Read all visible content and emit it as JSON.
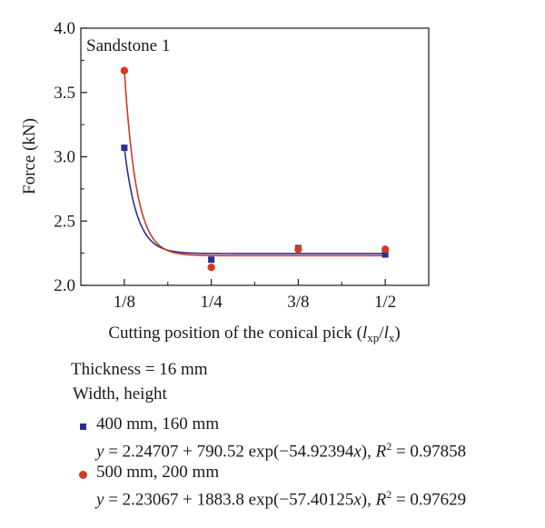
{
  "chart_data": {
    "type": "scatter",
    "title": "Sandstone 1",
    "xlabel_main": "Cutting position of the conical pick (",
    "xlabel_l1": "l",
    "xlabel_sub1": "xp",
    "xlabel_slash": "/",
    "xlabel_l2": "l",
    "xlabel_sub2": "x",
    "xlabel_close": ")",
    "ylabel": "Force (kN)",
    "categories": [
      "1/8",
      "1/4",
      "3/8",
      "1/2"
    ],
    "x": [
      0.125,
      0.25,
      0.375,
      0.5
    ],
    "xlim": [
      0.0625,
      0.5625
    ],
    "ylim": [
      2.0,
      4.0
    ],
    "yticks": [
      "2.0",
      "2.5",
      "3.0",
      "3.5",
      "4.0"
    ],
    "series": [
      {
        "name": "400 mm, 160 mm",
        "color": "#2b2f8f",
        "marker": "square",
        "values": [
          3.07,
          2.2,
          2.29,
          2.24
        ],
        "fit": {
          "a": 2.24707,
          "b": 790.52,
          "c": -54.92394
        }
      },
      {
        "name": "500 mm, 200 mm",
        "color": "#d23a20",
        "marker": "circle",
        "values": [
          3.67,
          2.14,
          2.28,
          2.28
        ],
        "fit": {
          "a": 2.23067,
          "b": 1883.8,
          "c": -57.40125
        }
      }
    ]
  },
  "legend": {
    "thickness": "Thickness = 16 mm",
    "dims_header": "Width, height",
    "s1_label": "400 mm, 160 mm",
    "s1_eq": "= 2.24707 + 790.52 exp(−54.92394",
    "s1_r2": " = 0.97858",
    "s2_label": "500 mm, 200 mm",
    "s2_eq": "= 2.23067 + 1883.8 exp(−57.40125",
    "s2_r2": " = 0.97629",
    "y_var": "y",
    "x_var": "x",
    "eq_close": "), ",
    "r_var": "R",
    "r_exp": "2"
  }
}
